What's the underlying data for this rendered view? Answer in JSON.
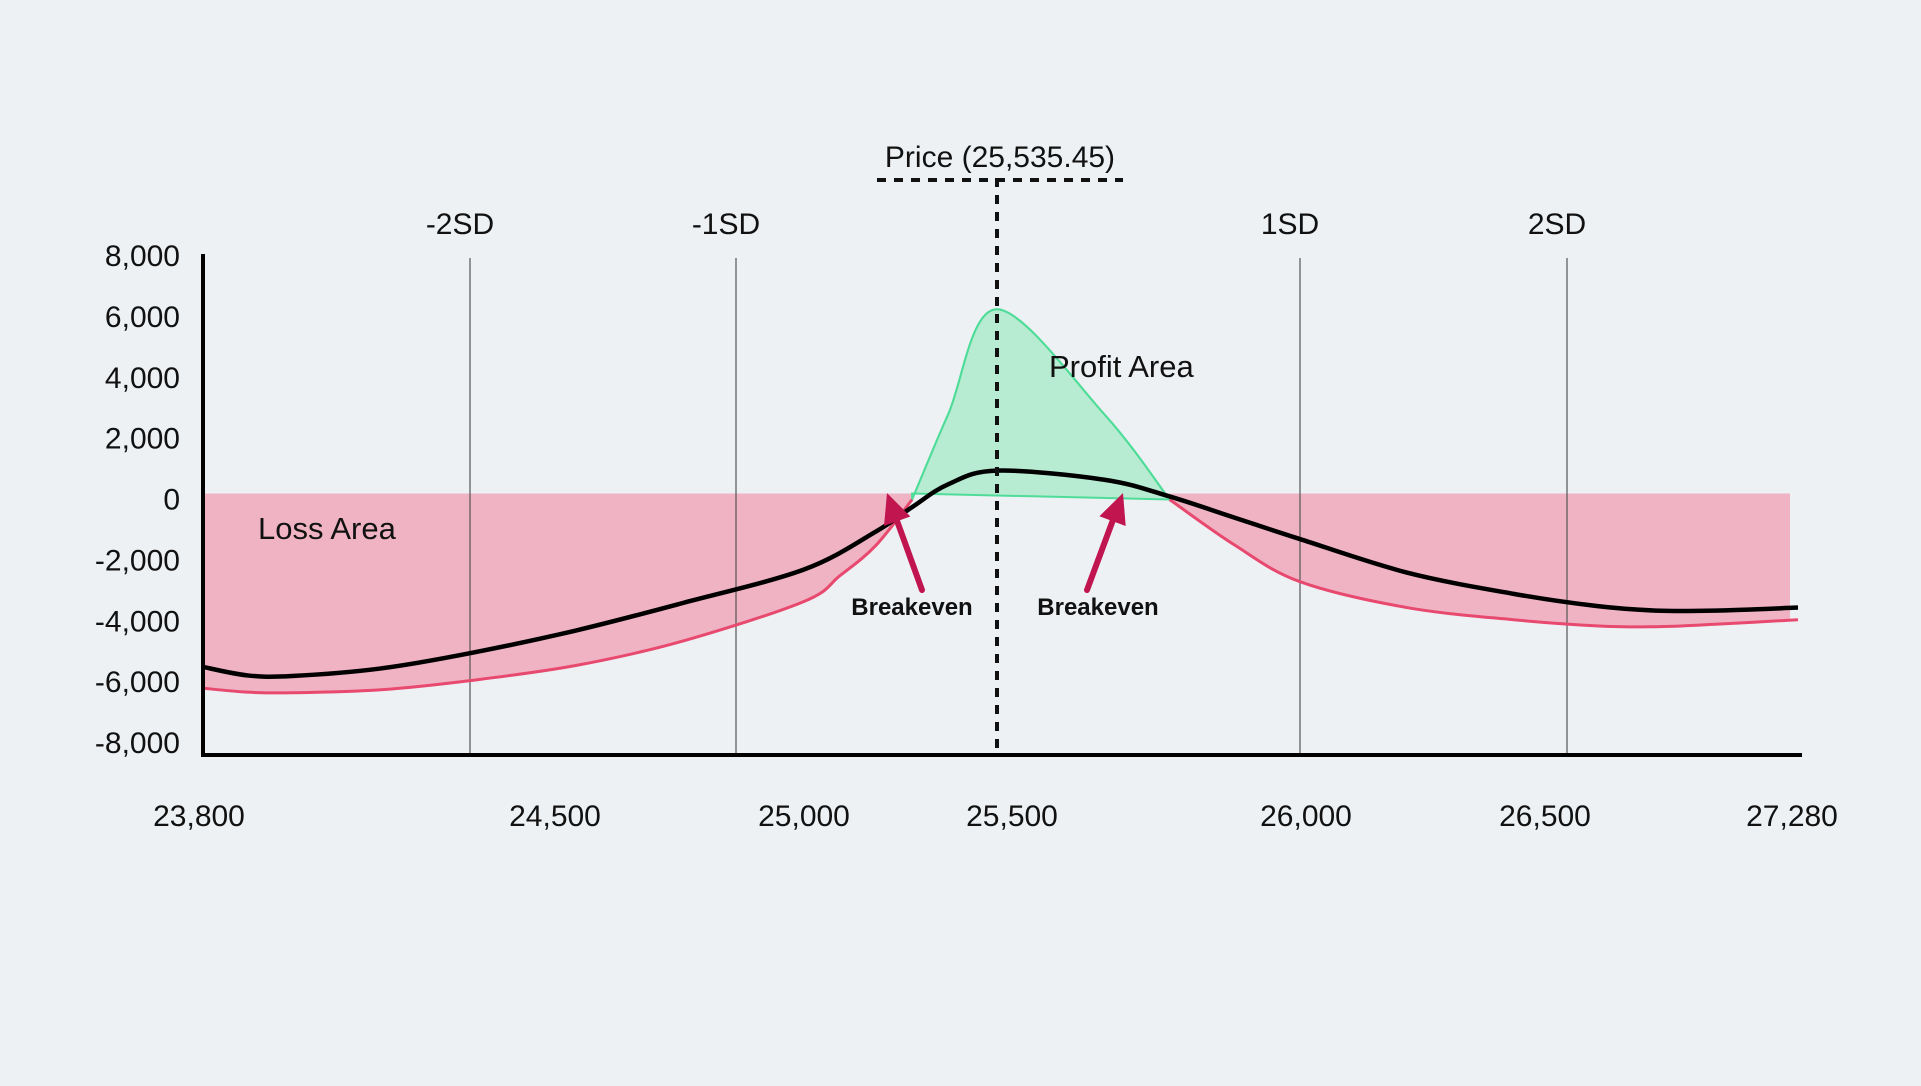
{
  "chart_data": {
    "type": "line",
    "title": "",
    "xlabel": "",
    "ylabel": "",
    "ylim": [
      -8000,
      8000
    ],
    "yticks": [
      "8,000",
      "6,000",
      "4,000",
      "2,000",
      "0",
      "-2,000",
      "-4,000",
      "-6,000",
      "-8,000"
    ],
    "ytick_values": [
      8000,
      6000,
      4000,
      2000,
      0,
      -2000,
      -4000,
      -6000,
      -8000
    ],
    "xticks": [
      "23,800",
      "24,500",
      "25,000",
      "25,500",
      "26,000",
      "26,500",
      "27,280"
    ],
    "current_price": {
      "label": "Price (25,535.45)",
      "value": 25535.45
    },
    "sd_lines": [
      {
        "label": "-2SD",
        "value": 24400
      },
      {
        "label": "-1SD",
        "value": 24900
      },
      {
        "label": "1SD",
        "value": 26000
      },
      {
        "label": "2SD",
        "value": 26500
      }
    ],
    "series": [
      {
        "name": "",
        "color": "#000000",
        "x": [
          23800,
          23900,
          24000,
          24200,
          24400,
          24600,
          24800,
          25000,
          25200,
          25300,
          25400,
          25535,
          25700,
          25800,
          25900,
          26000,
          26200,
          26400,
          26600,
          26800,
          27000,
          27280
        ],
        "y": [
          -5500,
          -5780,
          -5800,
          -5550,
          -5050,
          -4300,
          -3400,
          -2300,
          -1050,
          -250,
          500,
          950,
          650,
          100,
          -600,
          -1300,
          -2400,
          -3100,
          -3500,
          -3650,
          -3650,
          -3550
        ]
      },
      {
        "name": "",
        "color": "#e8496e",
        "x": [
          23800,
          23900,
          24000,
          24200,
          24400,
          24600,
          24800,
          25000,
          25100,
          25200,
          25300,
          25400,
          25535,
          25700,
          25800,
          25900,
          26000,
          26200,
          26400,
          26600,
          26800,
          27000,
          27280
        ],
        "y": [
          -6200,
          -6330,
          -6350,
          -6250,
          -5950,
          -5450,
          -4650,
          -3350,
          -2500,
          -1500,
          0,
          2800,
          6250,
          2800,
          0,
          -1500,
          -2700,
          -3550,
          -3950,
          -4150,
          -4180,
          -4100,
          -3950
        ]
      }
    ],
    "breakevens": [
      {
        "label": "Breakeven",
        "value": 25260
      },
      {
        "label": "Breakeven",
        "value": 25790
      }
    ],
    "area_labels": {
      "profit": "Profit Area",
      "loss": "Loss Area"
    },
    "colors": {
      "profit_fill": "#b7ecd2",
      "profit_stroke": "#4fdc98",
      "loss_fill": "#f0b3c4",
      "loss_stroke": "#e8496e",
      "arrow": "#c0154f",
      "background": "#edf1f4"
    },
    "grid": false
  }
}
